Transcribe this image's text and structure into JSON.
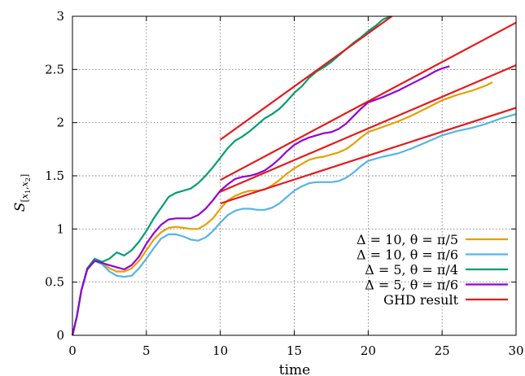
{
  "chart_data": {
    "type": "line",
    "xlabel": "time",
    "ylabel": "S[x1,x2]",
    "xlim": [
      0,
      30
    ],
    "ylim": [
      0,
      3
    ],
    "xticks": [
      "0",
      "5",
      "10",
      "15",
      "20",
      "25",
      "30"
    ],
    "yticks": [
      "0",
      "0.5",
      "1",
      "1.5",
      "2",
      "2.5",
      "3"
    ],
    "grid": true,
    "legend_position": "bottom-right",
    "series": [
      {
        "name": "Δ = 10, θ = π/5",
        "color": "#e69f00",
        "x": [
          0,
          0.3,
          0.6,
          1.0,
          1.5,
          2.0,
          2.5,
          3.0,
          3.5,
          4.0,
          4.5,
          5.0,
          5.5,
          6.0,
          6.5,
          7.0,
          7.5,
          8.0,
          8.5,
          9.0,
          9.5,
          10.0,
          10.5,
          11.0,
          11.5,
          12.0,
          12.5,
          13.0,
          13.5,
          14.0,
          14.5,
          15.0,
          15.5,
          16.0,
          16.5,
          17.0,
          17.5,
          18.0,
          18.5,
          19.0,
          19.5,
          20.0,
          21.0,
          22.0,
          23.0,
          24.0,
          25.0,
          26.0,
          27.0,
          28.0,
          28.4
        ],
        "y": [
          0,
          0.18,
          0.42,
          0.62,
          0.7,
          0.68,
          0.63,
          0.6,
          0.6,
          0.63,
          0.7,
          0.8,
          0.9,
          0.97,
          1.01,
          1.02,
          1.01,
          1.0,
          1.0,
          1.04,
          1.1,
          1.19,
          1.27,
          1.31,
          1.34,
          1.36,
          1.36,
          1.37,
          1.41,
          1.46,
          1.52,
          1.57,
          1.61,
          1.65,
          1.67,
          1.68,
          1.7,
          1.72,
          1.75,
          1.8,
          1.86,
          1.91,
          1.96,
          2.01,
          2.07,
          2.14,
          2.21,
          2.26,
          2.3,
          2.35,
          2.38
        ]
      },
      {
        "name": "Δ = 10, θ = π/6",
        "color": "#56b4e9",
        "x": [
          0,
          0.3,
          0.6,
          1.0,
          1.5,
          2.0,
          2.5,
          3.0,
          3.5,
          4.0,
          4.5,
          5.0,
          5.5,
          6.0,
          6.5,
          7.0,
          7.5,
          8.0,
          8.5,
          9.0,
          9.5,
          10.0,
          10.5,
          11.0,
          11.5,
          12.0,
          12.5,
          13.0,
          13.5,
          14.0,
          14.5,
          15.0,
          15.5,
          16.0,
          16.5,
          17.0,
          17.5,
          18.0,
          18.5,
          19.0,
          19.5,
          20.0,
          21.0,
          22.0,
          23.0,
          24.0,
          25.0,
          26.0,
          27.0,
          28.0,
          29.0,
          30.0
        ],
        "y": [
          0,
          0.18,
          0.42,
          0.62,
          0.7,
          0.67,
          0.6,
          0.56,
          0.55,
          0.56,
          0.63,
          0.72,
          0.82,
          0.91,
          0.95,
          0.95,
          0.93,
          0.9,
          0.89,
          0.92,
          0.98,
          1.06,
          1.13,
          1.17,
          1.19,
          1.19,
          1.18,
          1.18,
          1.2,
          1.24,
          1.3,
          1.36,
          1.4,
          1.43,
          1.44,
          1.44,
          1.44,
          1.45,
          1.48,
          1.53,
          1.59,
          1.64,
          1.68,
          1.71,
          1.76,
          1.82,
          1.88,
          1.92,
          1.95,
          1.99,
          2.04,
          2.08
        ]
      },
      {
        "name": "Δ = 5, θ = π/4",
        "color": "#009e73",
        "x": [
          0,
          0.3,
          0.6,
          1.0,
          1.5,
          2.0,
          2.5,
          3.0,
          3.5,
          4.0,
          4.5,
          5.0,
          5.5,
          6.0,
          6.5,
          7.0,
          7.5,
          8.0,
          8.5,
          9.0,
          9.5,
          10.0,
          10.5,
          11.0,
          11.5,
          12.0,
          12.5,
          13.0,
          13.5,
          14.0,
          14.5,
          15.0,
          15.5,
          16.0,
          16.5,
          17.0,
          17.5,
          18.0,
          18.5,
          19.0,
          19.5,
          20.0,
          20.5,
          21.0,
          21.5
        ],
        "y": [
          0,
          0.18,
          0.42,
          0.63,
          0.72,
          0.69,
          0.72,
          0.78,
          0.75,
          0.8,
          0.88,
          0.98,
          1.1,
          1.2,
          1.3,
          1.34,
          1.36,
          1.38,
          1.43,
          1.5,
          1.58,
          1.67,
          1.76,
          1.83,
          1.87,
          1.92,
          1.98,
          2.04,
          2.08,
          2.13,
          2.2,
          2.28,
          2.34,
          2.42,
          2.48,
          2.52,
          2.57,
          2.63,
          2.69,
          2.75,
          2.8,
          2.86,
          2.91,
          2.97,
          3.0
        ]
      },
      {
        "name": "Δ = 5, θ = π/6",
        "color": "#9400d3",
        "x": [
          0,
          0.3,
          0.6,
          1.0,
          1.5,
          2.0,
          2.5,
          3.0,
          3.5,
          4.0,
          4.5,
          5.0,
          5.5,
          6.0,
          6.5,
          7.0,
          7.5,
          8.0,
          8.5,
          9.0,
          9.5,
          10.0,
          10.5,
          11.0,
          11.5,
          12.0,
          12.5,
          13.0,
          13.5,
          14.0,
          14.5,
          15.0,
          15.5,
          16.0,
          16.5,
          17.0,
          17.5,
          18.0,
          18.5,
          19.0,
          19.5,
          20.0,
          21.0,
          22.0,
          23.0,
          24.0,
          24.5,
          25.0,
          25.5
        ],
        "y": [
          0,
          0.18,
          0.42,
          0.62,
          0.7,
          0.68,
          0.66,
          0.64,
          0.62,
          0.66,
          0.74,
          0.86,
          0.96,
          1.04,
          1.09,
          1.1,
          1.1,
          1.1,
          1.13,
          1.19,
          1.27,
          1.36,
          1.42,
          1.47,
          1.49,
          1.5,
          1.52,
          1.55,
          1.6,
          1.66,
          1.73,
          1.79,
          1.83,
          1.86,
          1.88,
          1.9,
          1.91,
          1.94,
          1.99,
          2.06,
          2.13,
          2.19,
          2.24,
          2.3,
          2.37,
          2.44,
          2.48,
          2.51,
          2.53
        ]
      },
      {
        "name": "GHD result",
        "color": "#e41a1c",
        "segments": [
          {
            "x": [
              10,
              21.6
            ],
            "y": [
              1.84,
              3.0
            ]
          },
          {
            "x": [
              10,
              30
            ],
            "y": [
              1.46,
              2.94
            ]
          },
          {
            "x": [
              10,
              30
            ],
            "y": [
              1.35,
              2.54
            ]
          },
          {
            "x": [
              10,
              30
            ],
            "y": [
              1.24,
              2.14
            ]
          }
        ]
      }
    ]
  }
}
